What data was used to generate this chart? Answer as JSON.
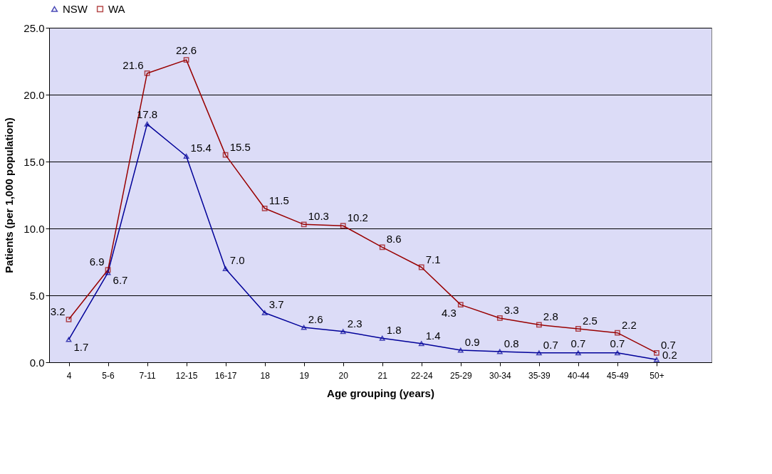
{
  "chart_data": {
    "type": "line",
    "xlabel": "Age grouping (years)",
    "ylabel": "Patients (per 1,000 population)",
    "categories": [
      "4",
      "5-6",
      "7-11",
      "12-15",
      "16-17",
      "18",
      "19",
      "20",
      "21",
      "22-24",
      "25-29",
      "30-34",
      "35-39",
      "40-44",
      "45-49",
      "50+"
    ],
    "series": [
      {
        "name": "NSW",
        "color": "#000099",
        "marker": "triangle",
        "values": [
          1.7,
          6.7,
          17.8,
          15.4,
          7.0,
          3.7,
          2.6,
          2.3,
          1.8,
          1.4,
          0.9,
          0.8,
          0.7,
          0.7,
          0.7,
          0.2
        ],
        "value_labels": [
          "1.7",
          "6.7",
          "17.8",
          "15.4",
          "7.0",
          "3.7",
          "2.6",
          "2.3",
          "1.8",
          "1.4",
          "0.9",
          "0.8",
          "0.7",
          "0.7",
          "0.7",
          "0.2"
        ]
      },
      {
        "name": "WA",
        "color": "#990000",
        "marker": "square",
        "values": [
          3.2,
          6.9,
          21.6,
          22.6,
          15.5,
          11.5,
          10.3,
          10.2,
          8.6,
          7.1,
          4.3,
          3.3,
          2.8,
          2.5,
          2.2,
          0.7
        ],
        "value_labels": [
          "3.2",
          "6.9",
          "21.6",
          "22.6",
          "15.5",
          "11.5",
          "10.3",
          "10.2",
          "8.6",
          "7.1",
          "4.3",
          "3.3",
          "2.8",
          "2.5",
          "2.2",
          "0.7"
        ]
      }
    ],
    "ylim": [
      0,
      25
    ],
    "yticks": [
      {
        "value": 0,
        "label": "0.0"
      },
      {
        "value": 5,
        "label": "5.0"
      },
      {
        "value": 10,
        "label": "10.0"
      },
      {
        "value": 15,
        "label": "15.0"
      },
      {
        "value": 20,
        "label": "20.0"
      },
      {
        "value": 25,
        "label": "25.0"
      }
    ],
    "grid": "y",
    "legend": "top",
    "line_style": "solid"
  }
}
